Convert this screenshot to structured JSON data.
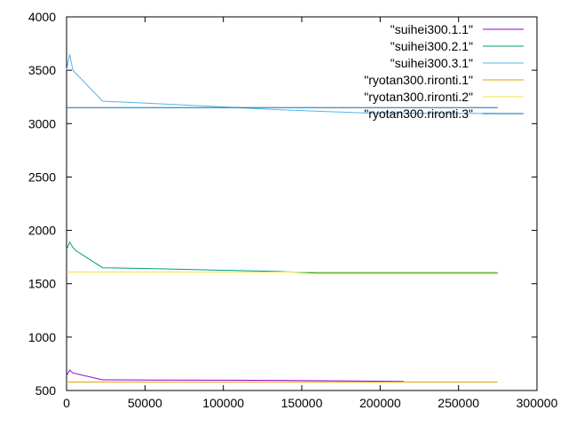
{
  "chart_data": {
    "type": "line",
    "title": "",
    "xlabel": "",
    "ylabel": "",
    "xlim": [
      0,
      300000
    ],
    "ylim": [
      500,
      4000
    ],
    "xticks": [
      "0",
      "50000",
      "100000",
      "150000",
      "200000",
      "250000",
      "300000"
    ],
    "yticks": [
      "500",
      "1000",
      "1500",
      "2000",
      "2500",
      "3000",
      "3500",
      "4000"
    ],
    "grid": false,
    "legend_position": "top-right",
    "series": [
      {
        "name": "\"suihei300.1.1\"",
        "color": "#9400d3",
        "x": [
          0,
          2000,
          4000,
          23000,
          60000,
          135000,
          215000
        ],
        "y": [
          640,
          690,
          665,
          600,
          598,
          595,
          585
        ]
      },
      {
        "name": "\"suihei300.2.1\"",
        "color": "#009e73",
        "x": [
          0,
          2000,
          4000,
          6000,
          23000,
          60000,
          135000,
          160000,
          275000
        ],
        "y": [
          1820,
          1890,
          1840,
          1810,
          1650,
          1640,
          1615,
          1600,
          1600
        ]
      },
      {
        "name": "\"suihei300.3.1\"",
        "color": "#56b4e9",
        "x": [
          0,
          2000,
          4000,
          23000,
          60000,
          135000,
          190000,
          275000
        ],
        "y": [
          3500,
          3650,
          3500,
          3210,
          3185,
          3130,
          3100,
          3095
        ]
      },
      {
        "name": "\"ryotan300.rironti.1\"",
        "color": "#e69f00",
        "x": [
          0,
          275000
        ],
        "y": [
          580,
          580
        ]
      },
      {
        "name": "\"ryotan300.rironti.2\"",
        "color": "#f0e442",
        "x": [
          0,
          275000
        ],
        "y": [
          1610,
          1610
        ]
      },
      {
        "name": "\"ryotan300.rironti.3\"",
        "color": "#0072b2",
        "x": [
          0,
          275000
        ],
        "y": [
          3150,
          3150
        ]
      }
    ]
  }
}
